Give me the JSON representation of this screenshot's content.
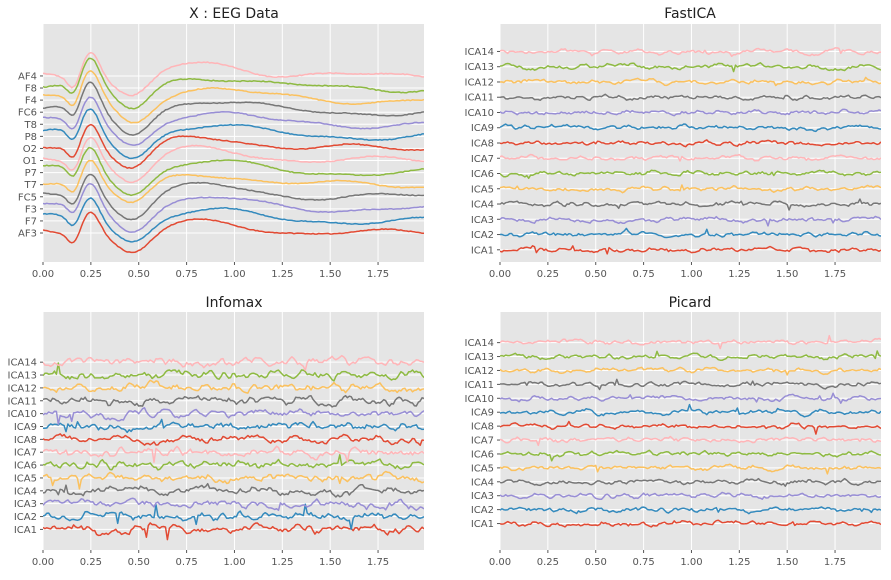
{
  "figure": {
    "background": "#ffffff",
    "panel_background": "#e5e5e5",
    "grid_color": "#ffffff",
    "tick_color": "#555555"
  },
  "palette": [
    "#E24A33",
    "#348ABD",
    "#988ED5",
    "#777777",
    "#FBC15E",
    "#8EBA42",
    "#FFB5B8"
  ],
  "chart_data": [
    {
      "type": "line",
      "title": "X : EEG Data",
      "xlim": [
        0,
        1.99
      ],
      "xticks": [
        "0.00",
        "0.25",
        "0.50",
        "0.75",
        "1.00",
        "1.25",
        "1.50",
        "1.75"
      ],
      "grid": true,
      "offset_step": 1,
      "ylim": [
        -2.4,
        17.3
      ],
      "channels": [
        "AF3",
        "F7",
        "F3",
        "FC5",
        "T7",
        "P7",
        "O1",
        "O2",
        "P8",
        "T8",
        "FC6",
        "F4",
        "F8",
        "AF4"
      ],
      "signal": "evoked",
      "seed": 11
    },
    {
      "type": "line",
      "title": "FastICA",
      "xlim": [
        0,
        1.99
      ],
      "xticks": [
        "0.00",
        "0.25",
        "0.50",
        "0.75",
        "1.00",
        "1.25",
        "1.50",
        "1.75"
      ],
      "grid": true,
      "offset_step": 1,
      "ylim": [
        -0.8,
        14.8
      ],
      "channels": [
        "ICA1",
        "ICA2",
        "ICA3",
        "ICA4",
        "ICA5",
        "ICA6",
        "ICA7",
        "ICA8",
        "ICA9",
        "ICA10",
        "ICA11",
        "ICA12",
        "ICA13",
        "ICA14"
      ],
      "signal": "noise",
      "amplitude": 0.42,
      "seed": 23
    },
    {
      "type": "line",
      "title": "Infomax",
      "xlim": [
        0,
        1.99
      ],
      "xticks": [
        "0.00",
        "0.25",
        "0.50",
        "0.75",
        "1.00",
        "1.25",
        "1.50",
        "1.75"
      ],
      "grid": true,
      "offset_step": 1,
      "ylim": [
        -1.6,
        16.9
      ],
      "channels": [
        "ICA1",
        "ICA2",
        "ICA3",
        "ICA4",
        "ICA5",
        "ICA6",
        "ICA7",
        "ICA8",
        "ICA9",
        "ICA10",
        "ICA11",
        "ICA12",
        "ICA13",
        "ICA14"
      ],
      "signal": "noise",
      "amplitude": 0.9,
      "seed": 37
    },
    {
      "type": "line",
      "title": "Picard",
      "xlim": [
        0,
        1.99
      ],
      "xticks": [
        "0.00",
        "0.25",
        "0.50",
        "0.75",
        "1.00",
        "1.25",
        "1.50",
        "1.75"
      ],
      "grid": true,
      "offset_step": 1,
      "ylim": [
        -1.9,
        15.2
      ],
      "channels": [
        "ICA1",
        "ICA2",
        "ICA3",
        "ICA4",
        "ICA5",
        "ICA6",
        "ICA7",
        "ICA8",
        "ICA9",
        "ICA10",
        "ICA11",
        "ICA12",
        "ICA13",
        "ICA14"
      ],
      "signal": "noise",
      "amplitude": 0.5,
      "seed": 53
    }
  ]
}
